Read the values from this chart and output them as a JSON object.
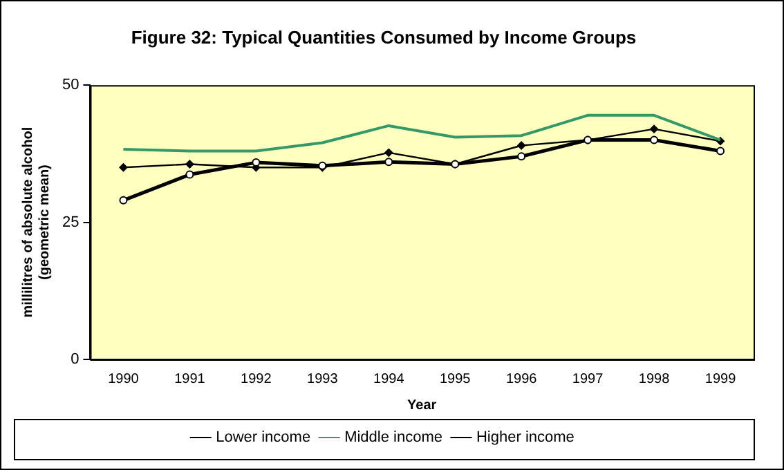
{
  "chart_data": {
    "type": "line",
    "title": "Figure 32: Typical Quantities Consumed by Income Groups",
    "xlabel": "Year",
    "ylabel": "millilitres of absolute alcohol\n(geometric mean)",
    "categories": [
      "1990",
      "1991",
      "1992",
      "1993",
      "1994",
      "1995",
      "1996",
      "1997",
      "1998",
      "1999"
    ],
    "series": [
      {
        "name": "Lower income",
        "color": "#000000",
        "marker": "circle",
        "values": [
          29,
          33.7,
          35.9,
          35.3,
          36,
          35.6,
          37,
          40,
          40,
          38
        ]
      },
      {
        "name": "Middle income",
        "color": "#339966",
        "marker": "none",
        "values": [
          38.3,
          38,
          38,
          39.5,
          42.6,
          40.5,
          40.8,
          44.5,
          44.5,
          40
        ]
      },
      {
        "name": "Higher income",
        "color": "#000000",
        "marker": "diamond",
        "values": [
          35,
          35.6,
          35,
          35,
          37.7,
          35.6,
          39,
          40,
          42,
          39.8
        ]
      }
    ],
    "ylim": [
      0,
      50
    ],
    "yticks": [
      0,
      25,
      50
    ],
    "grid": false,
    "legend": "bottom",
    "line_style": "solid"
  }
}
